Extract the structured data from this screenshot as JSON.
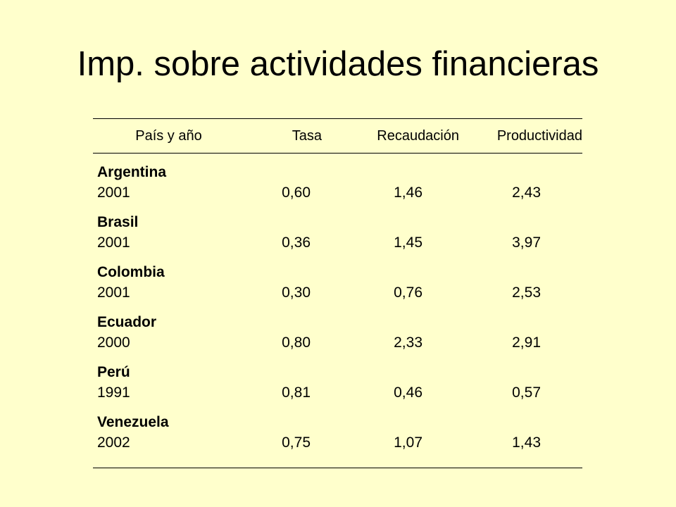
{
  "title": "Imp. sobre actividades financieras",
  "table": {
    "headers": {
      "pais": "País y año",
      "tasa": "Tasa",
      "recaudacion": "Recaudación",
      "productividad": "Productividad"
    },
    "rows": [
      {
        "country": "Argentina",
        "year": "2001",
        "tasa": "0,60",
        "recaudacion": "1,46",
        "productividad": "2,43"
      },
      {
        "country": "Brasil",
        "year": "2001",
        "tasa": "0,36",
        "recaudacion": "1,45",
        "productividad": "3,97"
      },
      {
        "country": "Colombia",
        "year": "2001",
        "tasa": "0,30",
        "recaudacion": "0,76",
        "productividad": "2,53"
      },
      {
        "country": "Ecuador",
        "year": "2000",
        "tasa": "0,80",
        "recaudacion": "2,33",
        "productividad": "2,91"
      },
      {
        "country": "Perú",
        "year": "1991",
        "tasa": "0,81",
        "recaudacion": "0,46",
        "productividad": "0,57"
      },
      {
        "country": "Venezuela",
        "year": "2002",
        "tasa": "0,75",
        "recaudacion": "1,07",
        "productividad": "1,43"
      }
    ]
  },
  "colors": {
    "background": "#FFFFCC",
    "text": "#000000"
  }
}
